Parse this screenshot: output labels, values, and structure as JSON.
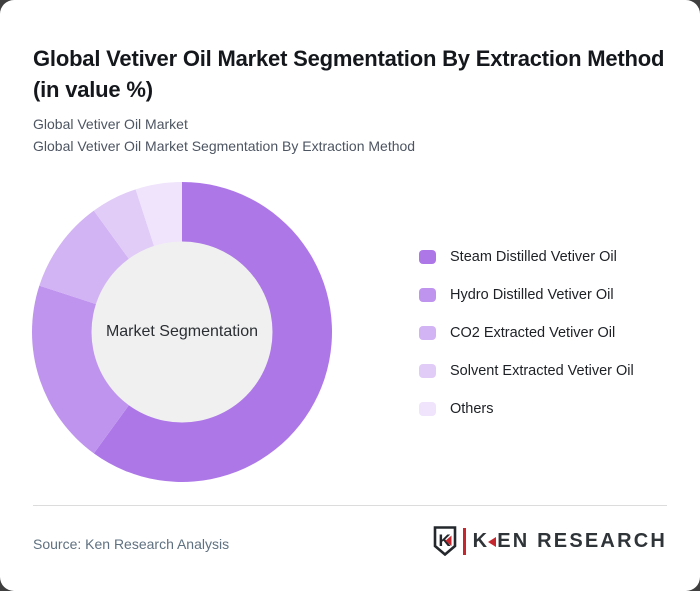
{
  "header": {
    "title": "Global Vetiver Oil Market Segmentation By Extraction Method (in value %)",
    "subtitle_line1": "Global Vetiver Oil Market",
    "subtitle_line2": "Global Vetiver Oil Market Segmentation By Extraction Method"
  },
  "chart_data": {
    "type": "pie",
    "subtype": "donut",
    "title": "Global Vetiver Oil Market Segmentation By Extraction Method (in value %)",
    "center_label": "Market Segmentation",
    "unit": "% of market value",
    "start_angle_deg": 0,
    "legend_position": "right",
    "categories": [
      "Steam Distilled Vetiver Oil",
      "Hydro Distilled Vetiver Oil",
      "CO2 Extracted Vetiver Oil",
      "Solvent Extracted Vetiver Oil",
      "Others"
    ],
    "values": [
      60,
      20,
      10,
      5,
      5
    ],
    "colors": [
      "#ad77e8",
      "#bf94ee",
      "#d2b3f3",
      "#e1ccf7",
      "#efe4fc"
    ],
    "hole_color": "#f0f0f0"
  },
  "footer": {
    "source": "Source: Ken Research Analysis",
    "logo": {
      "shield_letter": "K",
      "text_k": "K",
      "text_rest": "EN RESEARCH",
      "brand_red": "#c4272d",
      "brand_dark": "#24282c"
    }
  }
}
